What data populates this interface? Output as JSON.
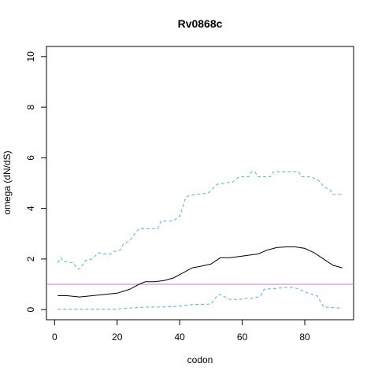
{
  "chart_data": {
    "type": "line",
    "title": "Rv0868c",
    "xlabel": "codon",
    "ylabel": "omega (dN/dS)",
    "xlim": [
      -2.6,
      95.6
    ],
    "ylim": [
      -0.4,
      10.4
    ],
    "x_ticks": [
      0,
      20,
      40,
      60,
      80
    ],
    "y_ticks": [
      0,
      2,
      4,
      6,
      8,
      10
    ],
    "grid": false,
    "legend": "none",
    "reference_line": {
      "y": 1,
      "color": "#c978c9"
    },
    "series": [
      {
        "style": "solid",
        "color": "#000000",
        "points": [
          [
            1,
            0.55
          ],
          [
            4,
            0.55
          ],
          [
            8,
            0.5
          ],
          [
            12,
            0.55
          ],
          [
            16,
            0.6
          ],
          [
            20,
            0.65
          ],
          [
            24,
            0.8
          ],
          [
            27,
            1.0
          ],
          [
            29,
            1.1
          ],
          [
            32,
            1.1
          ],
          [
            35,
            1.15
          ],
          [
            38,
            1.25
          ],
          [
            41,
            1.45
          ],
          [
            44,
            1.65
          ],
          [
            47,
            1.72
          ],
          [
            50,
            1.8
          ],
          [
            53,
            2.05
          ],
          [
            56,
            2.05
          ],
          [
            59,
            2.1
          ],
          [
            62,
            2.15
          ],
          [
            65,
            2.2
          ],
          [
            68,
            2.35
          ],
          [
            71,
            2.45
          ],
          [
            74,
            2.48
          ],
          [
            77,
            2.48
          ],
          [
            80,
            2.42
          ],
          [
            83,
            2.25
          ],
          [
            86,
            2.0
          ],
          [
            89,
            1.75
          ],
          [
            92,
            1.65
          ]
        ]
      },
      {
        "style": "dashed",
        "color": "#4fb3e8",
        "points": [
          [
            1,
            1.85
          ],
          [
            2,
            2.05
          ],
          [
            3,
            1.9
          ],
          [
            6,
            1.85
          ],
          [
            7,
            1.65
          ],
          [
            8,
            1.6
          ],
          [
            10,
            1.95
          ],
          [
            12,
            2.0
          ],
          [
            14,
            2.25
          ],
          [
            16,
            2.2
          ],
          [
            18,
            2.2
          ],
          [
            19,
            2.3
          ],
          [
            21,
            2.35
          ],
          [
            22,
            2.6
          ],
          [
            24,
            2.7
          ],
          [
            25,
            2.9
          ],
          [
            27,
            3.2
          ],
          [
            33,
            3.2
          ],
          [
            34,
            3.5
          ],
          [
            38,
            3.5
          ],
          [
            40,
            3.7
          ],
          [
            42,
            4.45
          ],
          [
            43,
            4.5
          ],
          [
            45,
            4.55
          ],
          [
            49,
            4.6
          ],
          [
            52,
            4.95
          ],
          [
            57,
            5.05
          ],
          [
            59,
            5.25
          ],
          [
            62,
            5.25
          ],
          [
            63,
            5.45
          ],
          [
            64,
            5.45
          ],
          [
            65,
            5.25
          ],
          [
            69,
            5.25
          ],
          [
            70,
            5.45
          ],
          [
            78,
            5.45
          ],
          [
            79,
            5.25
          ],
          [
            82,
            5.25
          ],
          [
            85,
            5.05
          ],
          [
            86,
            4.85
          ],
          [
            88,
            4.75
          ],
          [
            89,
            4.55
          ],
          [
            92,
            4.55
          ]
        ]
      },
      {
        "style": "dashed",
        "color": "#4fb3e8",
        "points": [
          [
            1,
            0.02
          ],
          [
            20,
            0.02
          ],
          [
            23,
            0.05
          ],
          [
            26,
            0.08
          ],
          [
            30,
            0.1
          ],
          [
            35,
            0.1
          ],
          [
            38,
            0.12
          ],
          [
            41,
            0.15
          ],
          [
            44,
            0.2
          ],
          [
            50,
            0.22
          ],
          [
            52,
            0.55
          ],
          [
            53,
            0.6
          ],
          [
            56,
            0.4
          ],
          [
            59,
            0.4
          ],
          [
            61,
            0.45
          ],
          [
            64,
            0.45
          ],
          [
            66,
            0.55
          ],
          [
            67,
            0.8
          ],
          [
            72,
            0.85
          ],
          [
            74,
            0.88
          ],
          [
            76,
            0.88
          ],
          [
            78,
            0.82
          ],
          [
            81,
            0.65
          ],
          [
            84,
            0.55
          ],
          [
            86,
            0.1
          ],
          [
            89,
            0.08
          ],
          [
            92,
            0.05
          ]
        ]
      }
    ]
  }
}
